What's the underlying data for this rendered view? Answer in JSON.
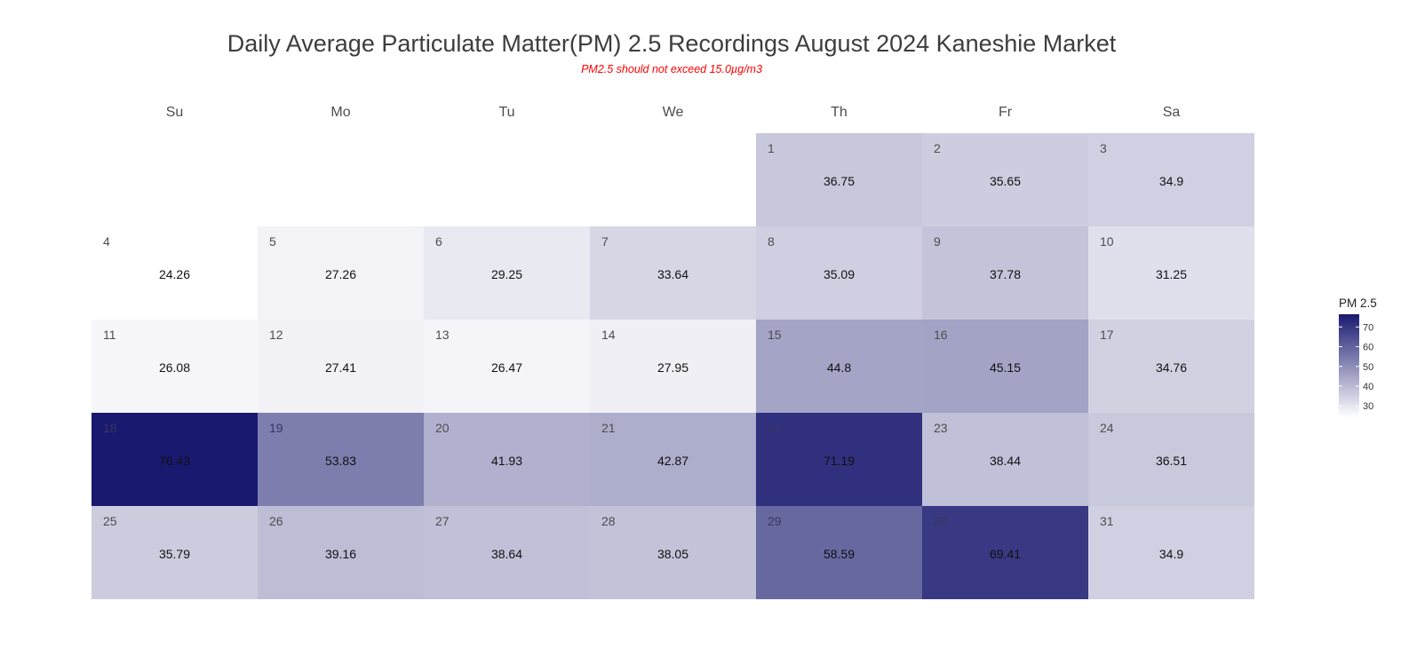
{
  "chart_data": {
    "type": "heatmap",
    "title": "Daily Average Particulate Matter(PM) 2.5 Recordings August 2024 Kaneshie Market",
    "subtitle": "PM2.5 should not exceed 15.0µg/m3",
    "subtitle_color": "#ff0000",
    "weekdays": [
      "Su",
      "Mo",
      "Tu",
      "We",
      "Th",
      "Fr",
      "Sa"
    ],
    "first_weekday_index": 4,
    "days": [
      1,
      2,
      3,
      4,
      5,
      6,
      7,
      8,
      9,
      10,
      11,
      12,
      13,
      14,
      15,
      16,
      17,
      18,
      19,
      20,
      21,
      22,
      23,
      24,
      25,
      26,
      27,
      28,
      29,
      30,
      31
    ],
    "values": [
      36.75,
      35.65,
      34.9,
      24.26,
      27.26,
      29.25,
      33.64,
      35.09,
      37.78,
      31.25,
      26.08,
      27.41,
      26.47,
      27.95,
      44.8,
      45.15,
      34.76,
      76.43,
      53.83,
      41.93,
      42.87,
      71.19,
      38.44,
      36.51,
      35.79,
      39.16,
      38.64,
      38.05,
      58.59,
      69.41,
      34.9
    ],
    "legend": {
      "title": "PM 2.5",
      "ticks": [
        30,
        40,
        50,
        60,
        70
      ],
      "range": [
        24.26,
        76.43
      ],
      "low_color": "#ffffff",
      "high_color": "#191970"
    }
  }
}
